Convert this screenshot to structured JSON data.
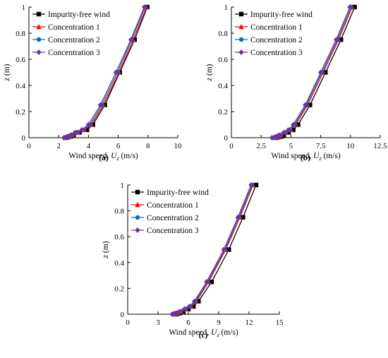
{
  "figure": {
    "subplot_labels": [
      "(a)",
      "(b)",
      "(c)"
    ]
  },
  "series_style": [
    {
      "color": "#000000",
      "marker": "square"
    },
    {
      "color": "#ff0000",
      "marker": "triangle"
    },
    {
      "color": "#0070c0",
      "marker": "circle"
    },
    {
      "color": "#7030a0",
      "marker": "diamond"
    }
  ],
  "chart_data": [
    {
      "type": "line",
      "label": "(a)",
      "ylabel_italic": "z",
      "ylabel_rest": " (m)",
      "xlabel_prefix": "Wind speed, ",
      "xlabel_var": "U",
      "xlabel_sub": "z",
      "xlabel_unit": " (m/s)",
      "xlim": [
        0,
        10
      ],
      "ylim": [
        0,
        1
      ],
      "xticks": [
        "0",
        "2",
        "4",
        "6",
        "8",
        "10"
      ],
      "yticks": [
        "0",
        "0.2",
        "0.4",
        "0.6",
        "0.8",
        "1"
      ],
      "legend_position": "top-left",
      "grid": false,
      "series": [
        {
          "name": "Impurity-free wind",
          "points": [
            [
              2.5,
              0
            ],
            [
              2.65,
              0.005
            ],
            [
              2.8,
              0.01
            ],
            [
              3.0,
              0.02
            ],
            [
              3.4,
              0.04
            ],
            [
              3.9,
              0.06
            ],
            [
              4.3,
              0.1
            ],
            [
              5.1,
              0.25
            ],
            [
              6.1,
              0.5
            ],
            [
              7.1,
              0.75
            ],
            [
              7.95,
              1.0
            ]
          ]
        },
        {
          "name": "Concentration 1",
          "points": [
            [
              2.45,
              0
            ],
            [
              2.6,
              0.005
            ],
            [
              2.75,
              0.01
            ],
            [
              2.95,
              0.02
            ],
            [
              3.3,
              0.04
            ],
            [
              3.75,
              0.06
            ],
            [
              4.2,
              0.1
            ],
            [
              5.0,
              0.25
            ],
            [
              6.05,
              0.5
            ],
            [
              7.0,
              0.75
            ],
            [
              7.9,
              1.0
            ]
          ]
        },
        {
          "name": "Concentration 2",
          "points": [
            [
              2.4,
              0
            ],
            [
              2.55,
              0.005
            ],
            [
              2.7,
              0.01
            ],
            [
              2.85,
              0.02
            ],
            [
              3.2,
              0.04
            ],
            [
              3.65,
              0.06
            ],
            [
              4.1,
              0.1
            ],
            [
              4.9,
              0.25
            ],
            [
              5.95,
              0.5
            ],
            [
              6.9,
              0.75
            ],
            [
              7.8,
              1.0
            ]
          ]
        },
        {
          "name": "Concentration 3",
          "points": [
            [
              2.35,
              0
            ],
            [
              2.5,
              0.005
            ],
            [
              2.62,
              0.01
            ],
            [
              2.8,
              0.02
            ],
            [
              3.1,
              0.04
            ],
            [
              3.55,
              0.06
            ],
            [
              4.0,
              0.1
            ],
            [
              4.8,
              0.25
            ],
            [
              5.85,
              0.5
            ],
            [
              6.85,
              0.75
            ],
            [
              7.75,
              1.0
            ]
          ]
        }
      ]
    },
    {
      "type": "line",
      "label": "(b)",
      "ylabel_italic": "z",
      "ylabel_rest": " (m)",
      "xlabel_prefix": "Wind speed, ",
      "xlabel_var": "U",
      "xlabel_sub": "z",
      "xlabel_unit": " (m/s)",
      "xlim": [
        0,
        12.5
      ],
      "ylim": [
        0,
        1
      ],
      "xticks": [
        "0",
        "2.5",
        "5",
        "7.5",
        "10",
        "12.5"
      ],
      "yticks": [
        "0",
        "0.2",
        "0.4",
        "0.6",
        "0.8",
        "1"
      ],
      "legend_position": "top-left",
      "grid": false,
      "series": [
        {
          "name": "Impurity-free wind",
          "points": [
            [
              3.8,
              0
            ],
            [
              4.0,
              0.005
            ],
            [
              4.2,
              0.01
            ],
            [
              4.4,
              0.02
            ],
            [
              4.8,
              0.04
            ],
            [
              5.2,
              0.06
            ],
            [
              5.6,
              0.1
            ],
            [
              6.6,
              0.25
            ],
            [
              7.9,
              0.5
            ],
            [
              9.2,
              0.75
            ],
            [
              10.35,
              1.0
            ]
          ]
        },
        {
          "name": "Concentration 1",
          "points": [
            [
              3.6,
              0
            ],
            [
              3.85,
              0.005
            ],
            [
              4.0,
              0.01
            ],
            [
              4.2,
              0.02
            ],
            [
              4.6,
              0.04
            ],
            [
              5.0,
              0.06
            ],
            [
              5.4,
              0.1
            ],
            [
              6.4,
              0.25
            ],
            [
              7.7,
              0.5
            ],
            [
              9.0,
              0.75
            ],
            [
              10.15,
              1.0
            ]
          ]
        },
        {
          "name": "Concentration 2",
          "points": [
            [
              3.5,
              0
            ],
            [
              3.75,
              0.005
            ],
            [
              3.9,
              0.01
            ],
            [
              4.1,
              0.02
            ],
            [
              4.5,
              0.04
            ],
            [
              4.9,
              0.06
            ],
            [
              5.3,
              0.1
            ],
            [
              6.3,
              0.25
            ],
            [
              7.6,
              0.5
            ],
            [
              8.9,
              0.75
            ],
            [
              10.05,
              1.0
            ]
          ]
        },
        {
          "name": "Concentration 3",
          "points": [
            [
              3.4,
              0
            ],
            [
              3.65,
              0.005
            ],
            [
              3.8,
              0.01
            ],
            [
              4.0,
              0.02
            ],
            [
              4.4,
              0.04
            ],
            [
              4.8,
              0.06
            ],
            [
              5.2,
              0.1
            ],
            [
              6.2,
              0.25
            ],
            [
              7.5,
              0.5
            ],
            [
              8.8,
              0.75
            ],
            [
              9.95,
              1.0
            ]
          ]
        }
      ]
    },
    {
      "type": "line",
      "label": "(c)",
      "ylabel_italic": "z",
      "ylabel_rest": " (m)",
      "xlabel_prefix": "Wind speed, ",
      "xlabel_var": "U",
      "xlabel_sub": "z",
      "xlabel_unit": " (m/s)",
      "xlim": [
        0,
        15
      ],
      "ylim": [
        0,
        1
      ],
      "xticks": [
        "0",
        "3",
        "6",
        "9",
        "12",
        "15"
      ],
      "yticks": [
        "0",
        "0.2",
        "0.4",
        "0.6",
        "0.8",
        "1"
      ],
      "legend_position": "top-left",
      "grid": false,
      "series": [
        {
          "name": "Impurity-free wind",
          "points": [
            [
              4.8,
              0
            ],
            [
              5.0,
              0.005
            ],
            [
              5.2,
              0.01
            ],
            [
              5.5,
              0.02
            ],
            [
              6.0,
              0.04
            ],
            [
              6.5,
              0.06
            ],
            [
              7.0,
              0.1
            ],
            [
              8.3,
              0.25
            ],
            [
              10.0,
              0.5
            ],
            [
              11.4,
              0.75
            ],
            [
              12.7,
              1.0
            ]
          ]
        },
        {
          "name": "Concentration 1",
          "points": [
            [
              4.6,
              0
            ],
            [
              4.8,
              0.005
            ],
            [
              5.0,
              0.01
            ],
            [
              5.3,
              0.02
            ],
            [
              5.8,
              0.04
            ],
            [
              6.3,
              0.06
            ],
            [
              6.8,
              0.1
            ],
            [
              8.0,
              0.25
            ],
            [
              9.7,
              0.5
            ],
            [
              11.1,
              0.75
            ],
            [
              12.4,
              1.0
            ]
          ]
        },
        {
          "name": "Concentration 2",
          "points": [
            [
              4.5,
              0
            ],
            [
              4.7,
              0.005
            ],
            [
              4.9,
              0.01
            ],
            [
              5.2,
              0.02
            ],
            [
              5.7,
              0.04
            ],
            [
              6.2,
              0.06
            ],
            [
              6.7,
              0.1
            ],
            [
              7.9,
              0.25
            ],
            [
              9.6,
              0.5
            ],
            [
              11.0,
              0.75
            ],
            [
              12.3,
              1.0
            ]
          ]
        },
        {
          "name": "Concentration 3",
          "points": [
            [
              4.4,
              0
            ],
            [
              4.6,
              0.005
            ],
            [
              4.8,
              0.01
            ],
            [
              5.1,
              0.02
            ],
            [
              5.6,
              0.04
            ],
            [
              6.1,
              0.06
            ],
            [
              6.6,
              0.1
            ],
            [
              7.8,
              0.25
            ],
            [
              9.5,
              0.5
            ],
            [
              10.9,
              0.75
            ],
            [
              12.2,
              1.0
            ]
          ]
        }
      ]
    }
  ]
}
